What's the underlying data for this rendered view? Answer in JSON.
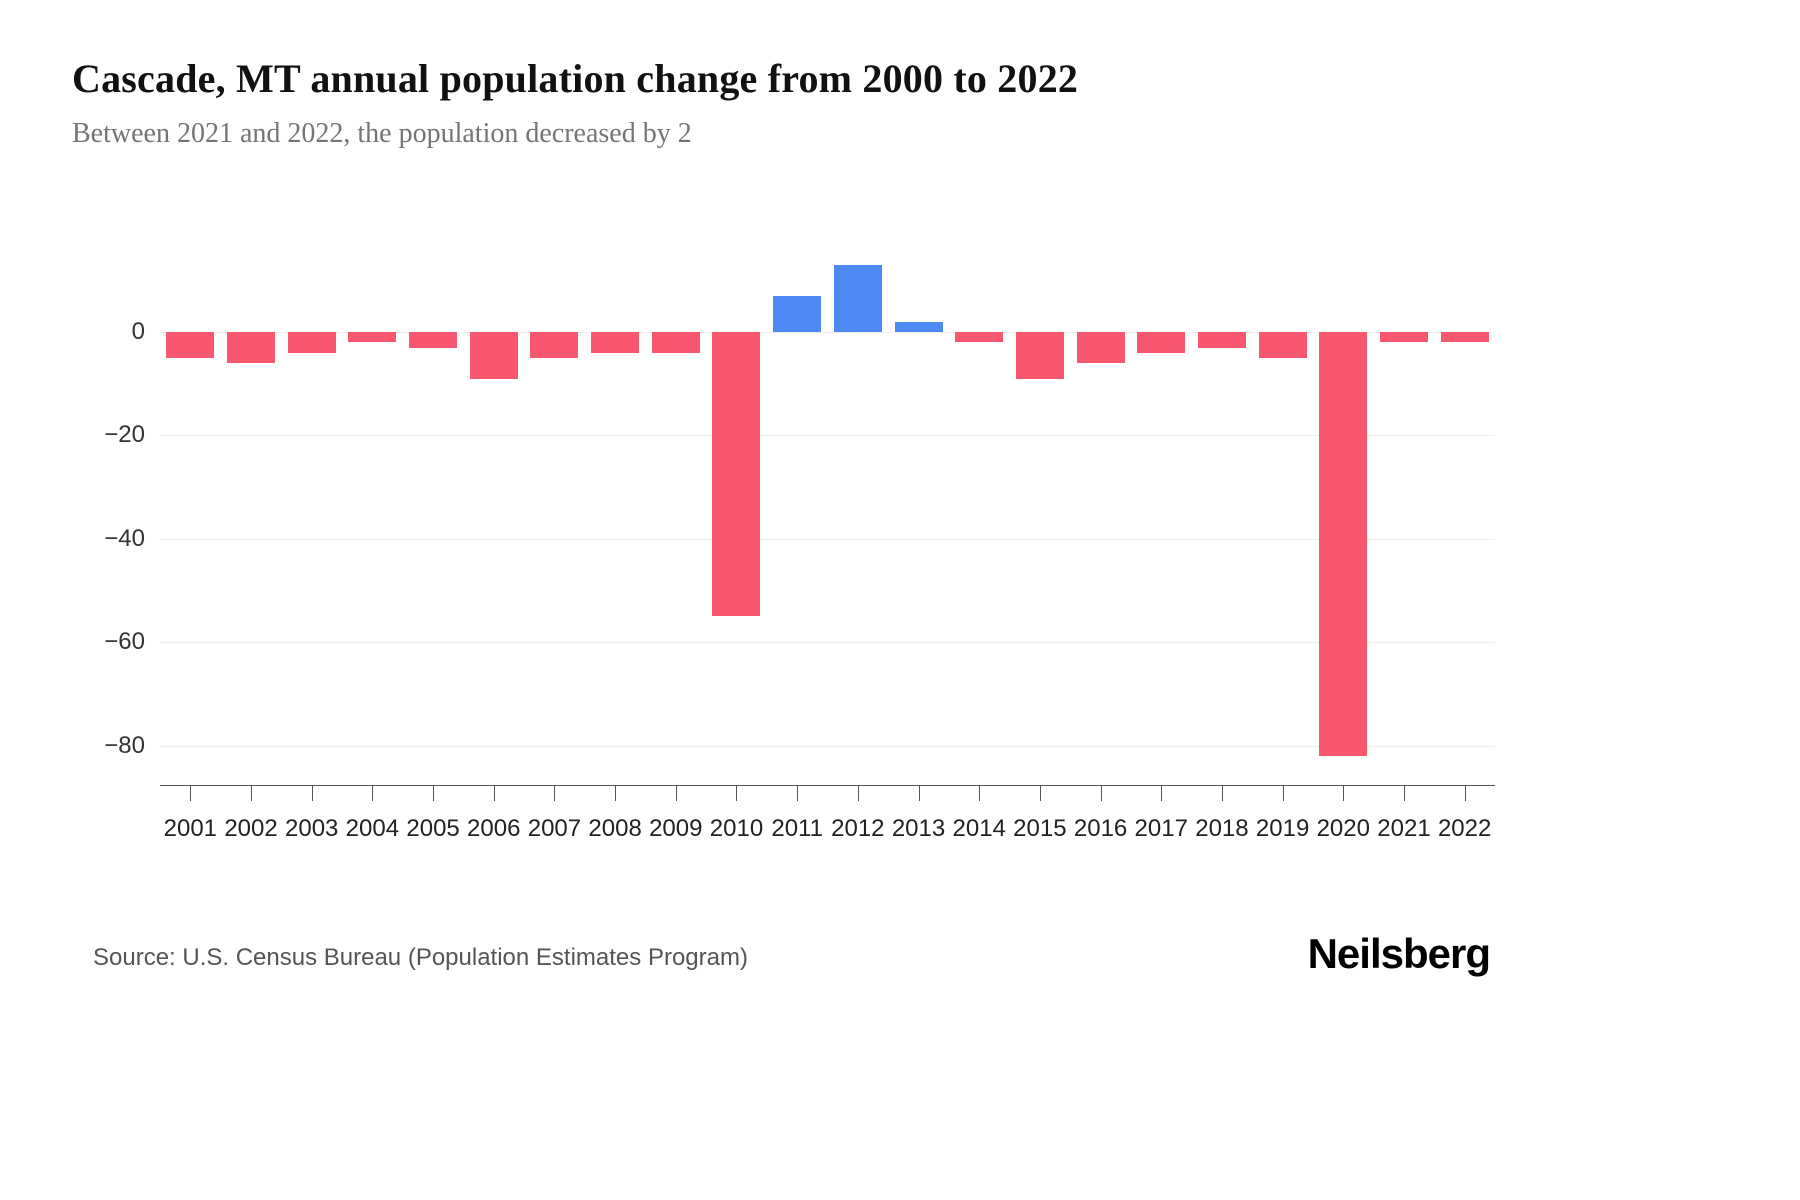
{
  "header": {
    "title": "Cascade, MT annual population change from 2000 to 2022",
    "subtitle": "Between 2021 and 2022, the population decreased by 2"
  },
  "footer": {
    "source": "Source: U.S. Census Bureau (Population Estimates Program)",
    "brand": "Neilsberg"
  },
  "chart_data": {
    "type": "bar",
    "title": "Cascade, MT annual population change from 2000 to 2022",
    "xlabel": "",
    "ylabel": "",
    "categories": [
      "2001",
      "2002",
      "2003",
      "2004",
      "2005",
      "2006",
      "2007",
      "2008",
      "2009",
      "2010",
      "2011",
      "2012",
      "2013",
      "2014",
      "2015",
      "2016",
      "2017",
      "2018",
      "2019",
      "2020",
      "2021",
      "2022"
    ],
    "values": [
      -5,
      -6,
      -4,
      -2,
      -3,
      -9,
      -5,
      -4,
      -4,
      -55,
      7,
      13,
      2,
      -2,
      -9,
      -6,
      -4,
      -3,
      -5,
      -82,
      -2,
      -2
    ],
    "yticks": [
      0,
      -20,
      -40,
      -60,
      -80
    ],
    "ylim": [
      -89,
      27
    ],
    "grid": true,
    "legend": "none",
    "colors": {
      "positive": "#4E8AF4",
      "negative": "#F7586F"
    }
  }
}
